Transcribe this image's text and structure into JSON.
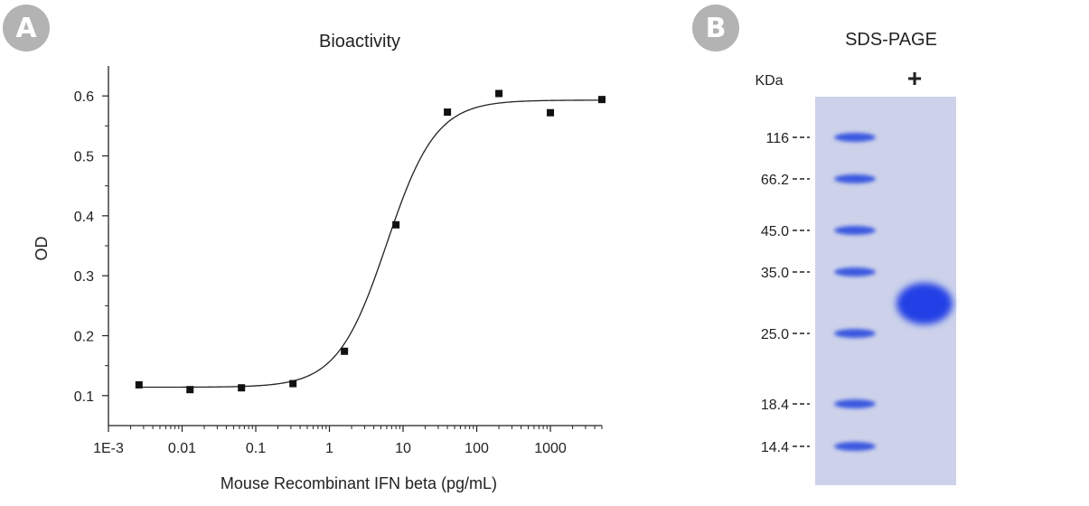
{
  "panels": {
    "a_label": "A",
    "b_label": "B"
  },
  "chart_data": {
    "type": "scatter",
    "title": "Bioactivity",
    "xlabel": "Mouse Recombinant IFN beta (pg/mL)",
    "ylabel": "OD",
    "xscale": "log",
    "xlim": [
      0.001,
      5000
    ],
    "ylim": [
      0.05,
      0.65
    ],
    "xticks": [
      0.001,
      0.01,
      0.1,
      1,
      10,
      100,
      1000
    ],
    "xtick_labels": [
      "1E-3",
      "0.01",
      "0.1",
      "1",
      "10",
      "100",
      "1000"
    ],
    "yticks": [
      0.1,
      0.2,
      0.3,
      0.4,
      0.5,
      0.6
    ],
    "ytick_labels": [
      "0.1",
      "0.2",
      "0.3",
      "0.4",
      "0.5",
      "0.6"
    ],
    "grid": false,
    "series": [
      {
        "points": [
          {
            "x": 0.0026,
            "y": 0.118
          },
          {
            "x": 0.0128,
            "y": 0.11
          },
          {
            "x": 0.064,
            "y": 0.113
          },
          {
            "x": 0.32,
            "y": 0.12
          },
          {
            "x": 1.6,
            "y": 0.174
          },
          {
            "x": 8.0,
            "y": 0.385
          },
          {
            "x": 40,
            "y": 0.573
          },
          {
            "x": 200,
            "y": 0.604
          },
          {
            "x": 1000,
            "y": 0.572
          },
          {
            "x": 5000,
            "y": 0.594
          }
        ]
      }
    ],
    "fit": {
      "model": "4PL",
      "bottom": 0.114,
      "top": 0.593,
      "ec50": 6.0,
      "hill": 1.3
    }
  },
  "gel": {
    "title": "SDS-PAGE",
    "unit_label": "KDa",
    "lane_label": "+",
    "markers": [
      "116",
      "66.2",
      "45.0",
      "35.0",
      "25.0",
      "18.4",
      "14.4"
    ]
  }
}
